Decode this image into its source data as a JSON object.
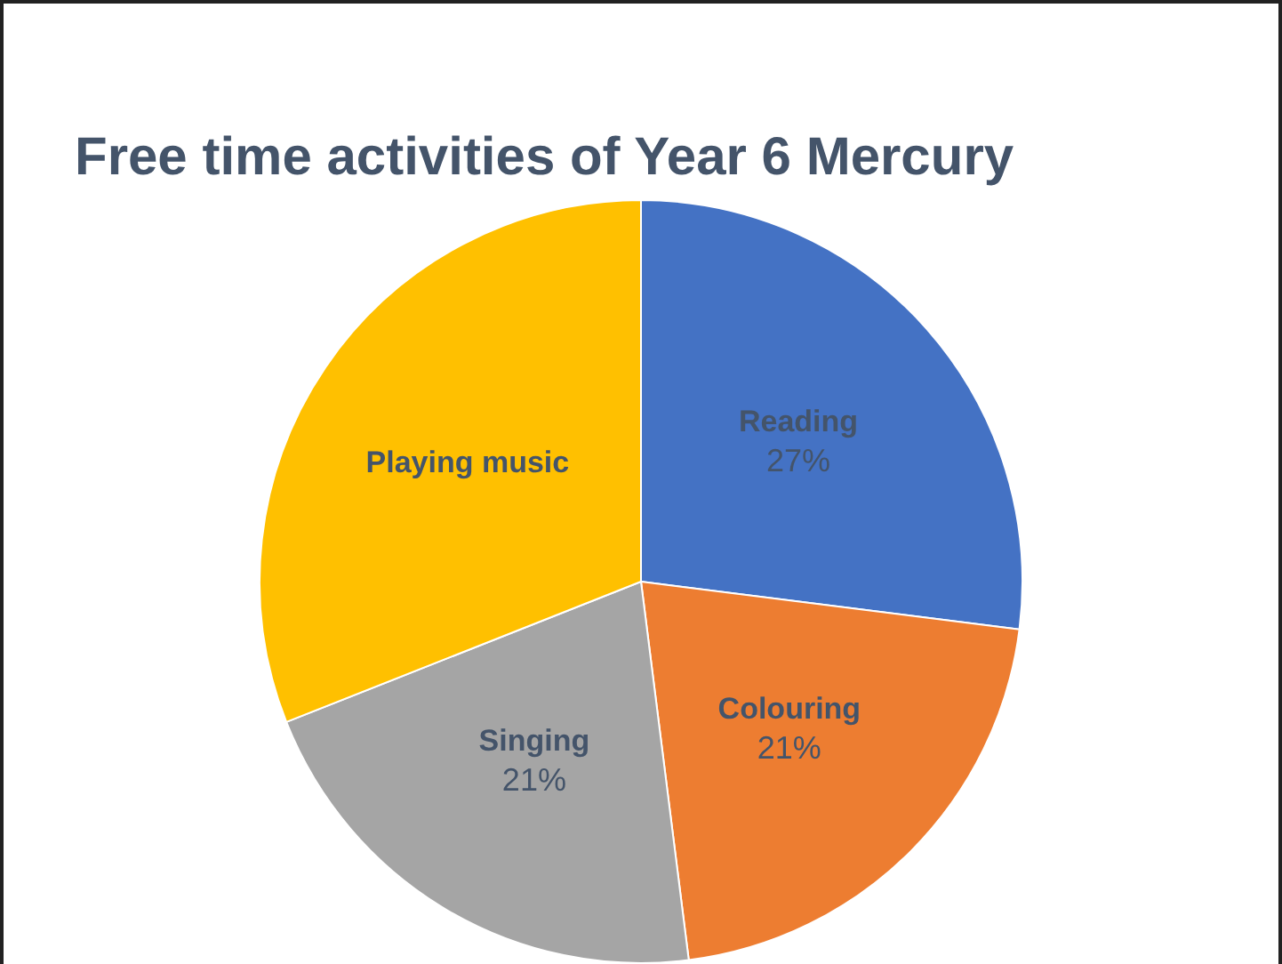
{
  "chart_data": {
    "type": "pie",
    "title": "Free time activities of Year 6 Mercury",
    "categories": [
      "Reading",
      "Colouring",
      "Singing",
      "Playing music"
    ],
    "values": [
      27,
      21,
      21,
      31
    ],
    "colors": [
      "#4472c4",
      "#ed7d31",
      "#a5a5a5",
      "#ffc000"
    ],
    "value_labels": [
      "27%",
      "21%",
      "21%",
      null
    ],
    "legend": false
  }
}
